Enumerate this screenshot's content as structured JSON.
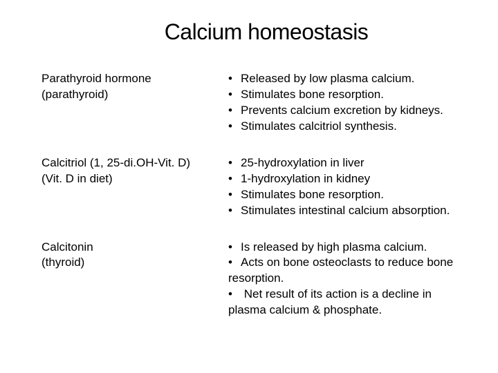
{
  "title": "Calcium homeostasis",
  "colors": {
    "bg": "#ffffff",
    "text": "#000000"
  },
  "typography": {
    "title_fontsize": 32,
    "body_fontsize": 17,
    "font_family": "Verdana"
  },
  "rows": [
    {
      "left_line1": "Parathyroid hormone",
      "left_line2": "(parathyroid)",
      "bullets": [
        "Released by low plasma calcium.",
        "Stimulates bone resorption.",
        "Prevents calcium excretion by kidneys.",
        "Stimulates calcitriol synthesis."
      ]
    },
    {
      "left_line1": "Calcitriol (1, 25-di.OH-Vit. D)",
      "left_line2": "(Vit. D in diet)",
      "bullets": [
        "25-hydroxylation in liver",
        "1-hydroxylation in kidney",
        "Stimulates bone resorption.",
        "Stimulates intestinal calcium absorption."
      ]
    },
    {
      "left_line1": "Calcitonin",
      "left_line2": "(thyroid)",
      "bullets": [
        "Is released by high plasma calcium.",
        "Acts on bone osteoclasts to reduce bone"
      ],
      "plain_after_bullet2": "resorption.",
      "bullet3_indented": "Net result of its action is a decline in",
      "plain_last": "plasma calcium & phosphate."
    }
  ]
}
